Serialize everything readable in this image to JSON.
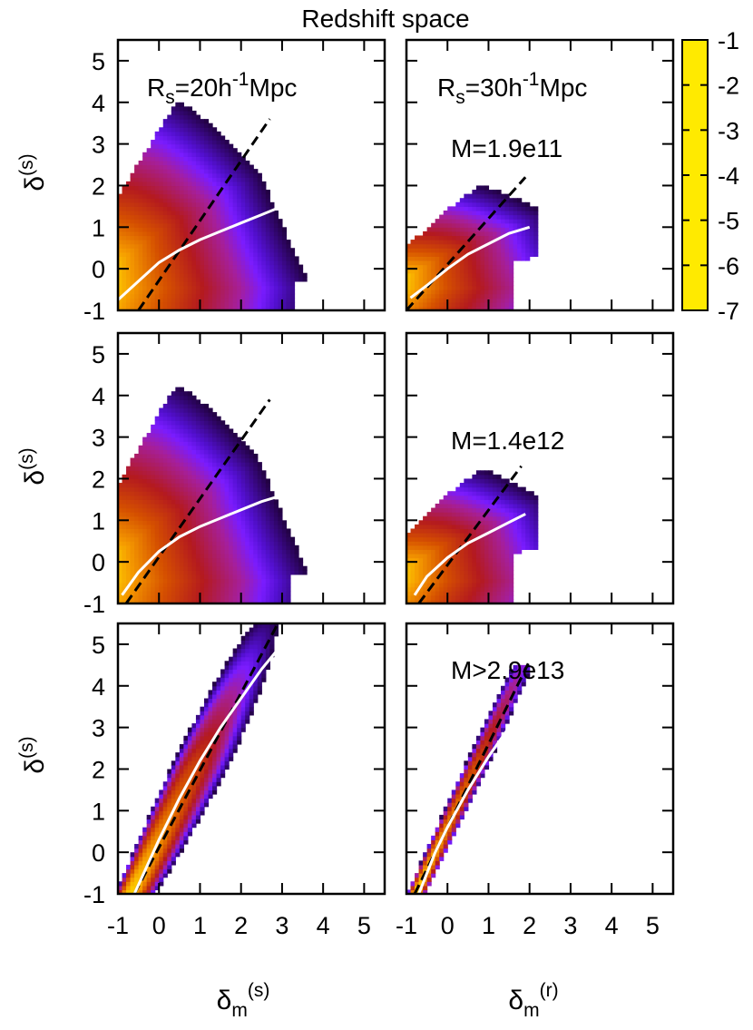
{
  "figure": {
    "title": "Redshift space"
  },
  "colorbar": {
    "ticks": [
      "-1",
      "-2",
      "-3",
      "-4",
      "-5",
      "-6",
      "-7"
    ],
    "range": [
      -7,
      -1
    ],
    "stops": [
      {
        "v": -1,
        "color": "#ffea00"
      },
      {
        "v": -2,
        "color": "#f59a00"
      },
      {
        "v": -3,
        "color": "#d55000"
      },
      {
        "v": -4,
        "color": "#b41a1e"
      },
      {
        "v": -5,
        "color": "#a61f9a"
      },
      {
        "v": -5.6,
        "color": "#7a1cff"
      },
      {
        "v": -6,
        "color": "#5410d2"
      },
      {
        "v": -7,
        "color": "#1d0033"
      }
    ]
  },
  "axes": {
    "xticks": [
      "-1",
      "0",
      "1",
      "2",
      "3",
      "4",
      "5"
    ],
    "yticks": [
      "5",
      "4",
      "3",
      "2",
      "1",
      "0",
      "-1"
    ],
    "ylabel_base": "δ",
    "ylabel_sup": "(s)",
    "xlabel_left_base": "δ",
    "xlabel_left_sub": "m",
    "xlabel_left_sup": "(s)",
    "xlabel_right_base": "δ",
    "xlabel_right_sub": "m",
    "xlabel_right_sup": "(r)"
  },
  "labels": {
    "rs20_base": "R",
    "rs20_sub": "s",
    "rs20_mid": "=20h",
    "rs20_sup": "-1",
    "rs20_end": "Mpc",
    "rs30_base": "R",
    "rs30_sub": "s",
    "rs30_mid": "=30h",
    "rs30_sup": "-1",
    "rs30_end": "Mpc",
    "mass_row1": "M=1.9e11",
    "mass_row2": "M=1.4e12",
    "mass_row3": "M>2.9e13"
  },
  "chart_data": [
    {
      "type": "heatmap",
      "row": 1,
      "col": 1,
      "xlim": [
        -1,
        5.5
      ],
      "ylim": [
        -1,
        5.5
      ],
      "x_axis": "δm(s)",
      "y_axis": "δ(s)",
      "mean_curve": [
        [
          -1,
          -0.75
        ],
        [
          -0.5,
          -0.3
        ],
        [
          0,
          0.15
        ],
        [
          0.5,
          0.45
        ],
        [
          1,
          0.7
        ],
        [
          1.5,
          0.9
        ],
        [
          2,
          1.1
        ],
        [
          2.5,
          1.3
        ],
        [
          3,
          1.5
        ],
        [
          3.5,
          1.65
        ],
        [
          3.7,
          1.6
        ]
      ],
      "diagonal": {
        "from": [
          -0.5,
          -1
        ],
        "to": [
          2.7,
          3.6
        ]
      }
    },
    {
      "type": "heatmap",
      "row": 1,
      "col": 2,
      "xlim": [
        -1,
        5.5
      ],
      "ylim": [
        -1,
        5.5
      ],
      "x_axis": "δm(r)",
      "y_axis": "δ(s)",
      "mean_curve": [
        [
          -0.9,
          -0.7
        ],
        [
          -0.5,
          -0.4
        ],
        [
          0,
          0.0
        ],
        [
          0.5,
          0.35
        ],
        [
          1,
          0.6
        ],
        [
          1.5,
          0.85
        ],
        [
          2,
          1.0
        ]
      ],
      "diagonal": {
        "from": [
          -1,
          -1
        ],
        "to": [
          1.9,
          2.2
        ]
      }
    },
    {
      "type": "heatmap",
      "row": 2,
      "col": 1,
      "xlim": [
        -1,
        5.5
      ],
      "ylim": [
        -1,
        5.5
      ],
      "x_axis": "δm(s)",
      "y_axis": "δ(s)",
      "mean_curve": [
        [
          -0.9,
          -0.8
        ],
        [
          -0.5,
          -0.25
        ],
        [
          0,
          0.25
        ],
        [
          0.5,
          0.6
        ],
        [
          1,
          0.85
        ],
        [
          1.5,
          1.05
        ],
        [
          2,
          1.25
        ],
        [
          2.5,
          1.45
        ],
        [
          3,
          1.6
        ],
        [
          3.5,
          1.7
        ],
        [
          3.65,
          1.9
        ]
      ],
      "diagonal": {
        "from": [
          -0.8,
          -1
        ],
        "to": [
          2.7,
          3.9
        ]
      }
    },
    {
      "type": "heatmap",
      "row": 2,
      "col": 2,
      "xlim": [
        -1,
        5.5
      ],
      "ylim": [
        -1,
        5.5
      ],
      "x_axis": "δm(r)",
      "y_axis": "δ(s)",
      "mean_curve": [
        [
          -0.8,
          -0.8
        ],
        [
          -0.5,
          -0.35
        ],
        [
          0,
          0.1
        ],
        [
          0.5,
          0.45
        ],
        [
          1,
          0.7
        ],
        [
          1.5,
          0.95
        ],
        [
          1.9,
          1.15
        ]
      ],
      "diagonal": {
        "from": [
          -0.7,
          -1
        ],
        "to": [
          1.8,
          2.3
        ]
      }
    },
    {
      "type": "heatmap",
      "row": 3,
      "col": 1,
      "xlim": [
        -1,
        5.5
      ],
      "ylim": [
        -1,
        5.5
      ],
      "x_axis": "δm(s)",
      "y_axis": "δ(s)",
      "mean_curve": [
        [
          -0.6,
          -1
        ],
        [
          0,
          0.3
        ],
        [
          0.5,
          1.3
        ],
        [
          1,
          2.2
        ],
        [
          1.5,
          3.0
        ],
        [
          2,
          3.7
        ],
        [
          2.5,
          4.4
        ],
        [
          3,
          5.0
        ]
      ],
      "diagonal": {
        "from": [
          -0.6,
          -1
        ],
        "to": [
          2.9,
          5.5
        ]
      }
    },
    {
      "type": "heatmap",
      "row": 3,
      "col": 2,
      "xlim": [
        -1,
        5.5
      ],
      "ylim": [
        -1,
        5.5
      ],
      "x_axis": "δm(r)",
      "y_axis": "δ(s)",
      "mean_curve": [
        [
          -0.7,
          -1
        ],
        [
          -0.3,
          0.0
        ],
        [
          0,
          0.6
        ],
        [
          0.5,
          1.5
        ],
        [
          1,
          2.3
        ],
        [
          1.5,
          3.0
        ],
        [
          1.8,
          3.4
        ]
      ],
      "diagonal": {
        "from": [
          -0.8,
          -1
        ],
        "to": [
          2.0,
          4.6
        ]
      }
    }
  ]
}
